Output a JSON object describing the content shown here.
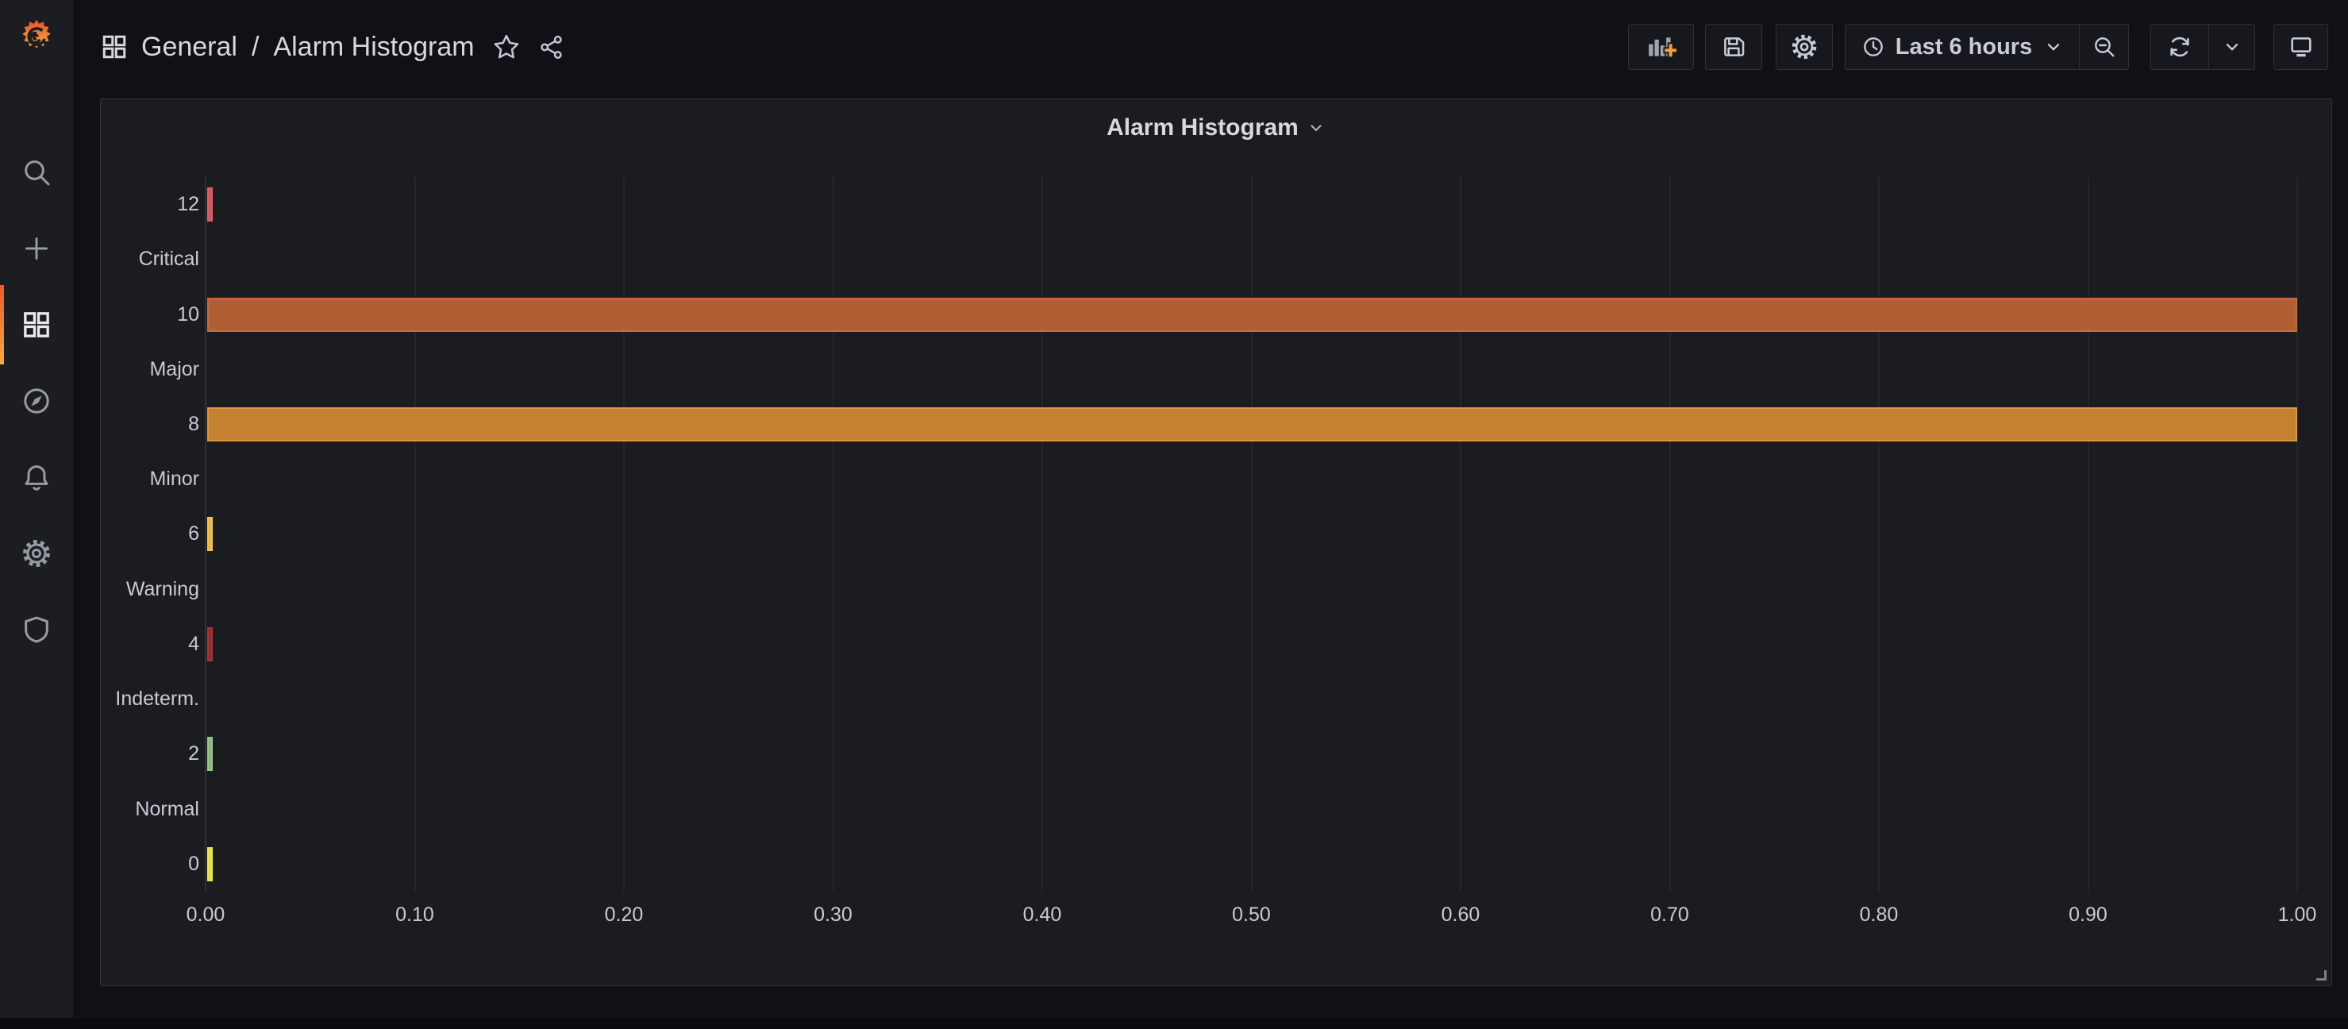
{
  "header": {
    "breadcrumb": {
      "section": "General",
      "separator": "/",
      "page": "Alarm Histogram",
      "icons": [
        "dashboard-grid-icon",
        "star-icon",
        "share-icon"
      ]
    },
    "toolbar": {
      "buttons": [
        "add-panel",
        "save-dashboard",
        "dashboard-settings",
        "time-picker",
        "zoom-out",
        "refresh",
        "refresh-interval-dropdown",
        "cycle-view-mode"
      ],
      "time_label": "Last 6 hours"
    }
  },
  "sidebar": {
    "items": [
      {
        "icon": "search-icon"
      },
      {
        "icon": "plus-icon"
      },
      {
        "icon": "dashboards-icon",
        "active": true
      },
      {
        "icon": "compass-icon"
      },
      {
        "icon": "bell-icon"
      },
      {
        "icon": "gear-icon"
      },
      {
        "icon": "shield-icon"
      }
    ]
  },
  "panel": {
    "title": "Alarm Histogram"
  },
  "colors": {
    "page_bg": "#101116",
    "sidebar_bg": "#1b1d21",
    "panel_bg": "#1a1c20",
    "panel_border": "#303338",
    "accent_orange": "#f8a83e",
    "text": "#d8d9da",
    "axis_text": "#c8cbd4"
  },
  "chart_data": {
    "type": "bar",
    "orientation": "horizontal",
    "title": "Alarm Histogram",
    "xlabel": "",
    "ylabel": "",
    "xlim": [
      0,
      1
    ],
    "grid": true,
    "legend": false,
    "categories": [
      "12",
      "Critical",
      "10",
      "Major",
      "8",
      "Minor",
      "6",
      "Warning",
      "4",
      "Indeterm.",
      "2",
      "Normal",
      "0"
    ],
    "values": [
      0.002,
      null,
      1.0,
      null,
      1.0,
      null,
      0.002,
      null,
      0.002,
      null,
      0.002,
      null,
      0.002
    ],
    "bar_colors": [
      "#d4525a",
      null,
      "#b25e34",
      null,
      "#c58132",
      null,
      "#edb43f",
      null,
      "#992b2b",
      null,
      "#8cb87d",
      null,
      "#e4dd3c"
    ],
    "bar_border_colors": [
      "#e05f66",
      null,
      "#c76b3e",
      null,
      "#df963c",
      null,
      "#f6c14b",
      null,
      "#a83434",
      null,
      "#98c689",
      null,
      "#efe84d"
    ],
    "x_ticks": [
      "0.00",
      "0.10",
      "0.20",
      "0.30",
      "0.40",
      "0.50",
      "0.60",
      "0.70",
      "0.80",
      "0.90",
      "1.00"
    ]
  }
}
